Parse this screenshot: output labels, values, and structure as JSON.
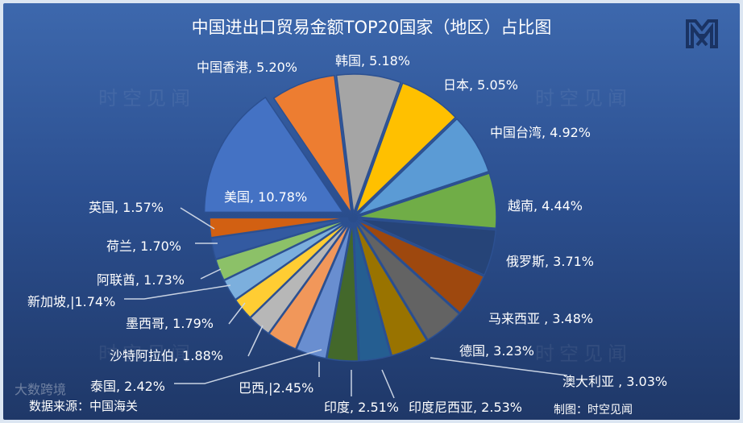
{
  "chart_data": {
    "type": "pie",
    "title": "中国进出口贸易金额TOP20国家（地区）占比图",
    "unit": "%",
    "slices": [
      {
        "label": "美国",
        "value": 10.78,
        "color": "#4472c4"
      },
      {
        "label": "中国香港",
        "value": 5.2,
        "color": "#ed7d31"
      },
      {
        "label": "韩国",
        "value": 5.18,
        "color": "#a5a5a5"
      },
      {
        "label": "日本",
        "value": 5.05,
        "color": "#ffc000"
      },
      {
        "label": "中国台湾",
        "value": 4.92,
        "color": "#5b9bd5"
      },
      {
        "label": "越南",
        "value": 4.44,
        "color": "#70ad47"
      },
      {
        "label": "俄罗斯",
        "value": 3.71,
        "color": "#264478"
      },
      {
        "label": "马来西亚",
        "value": 3.48,
        "color": "#9e480e"
      },
      {
        "label": "德国",
        "value": 3.23,
        "color": "#636363"
      },
      {
        "label": "澳大利亚",
        "value": 3.03,
        "color": "#997300"
      },
      {
        "label": "印度尼西亚",
        "value": 2.53,
        "color": "#255e91"
      },
      {
        "label": "印度",
        "value": 2.51,
        "color": "#43682b"
      },
      {
        "label": "巴西",
        "value": 2.45,
        "color": "#698ed0"
      },
      {
        "label": "泰国",
        "value": 2.42,
        "color": "#f1975a"
      },
      {
        "label": "沙特阿拉伯",
        "value": 1.88,
        "color": "#b7b7b7"
      },
      {
        "label": "墨西哥",
        "value": 1.79,
        "color": "#ffcd33"
      },
      {
        "label": "新加坡",
        "value": 1.74,
        "color": "#7cafdd"
      },
      {
        "label": "阿联酋",
        "value": 1.73,
        "color": "#8cc168"
      },
      {
        "label": "荷兰",
        "value": 1.7,
        "color": "#335aa1"
      },
      {
        "label": "英国",
        "value": 1.57,
        "color": "#d26012"
      }
    ],
    "labels_text": [
      "美国, 10.78%",
      "中国香港, 5.20%",
      "韩国, 5.18%",
      "日本, 5.05%",
      "中国台湾, 4.92%",
      "越南, 4.44%",
      "俄罗斯, 3.71%",
      "马来西亚 , 3.48%",
      "德国, 3.23%",
      "澳大利亚 , 3.03%",
      "印度尼西亚, 2.53%",
      "印度, 2.51%",
      "巴西,|2.45%",
      "泰国, 2.42%",
      "沙特阿拉伯, 1.88%",
      "墨西哥, 1.79%",
      "新加坡,|1.74%",
      "阿联酋, 1.73%",
      "荷兰, 1.70%",
      "英国, 1.57%"
    ],
    "legend": "none"
  },
  "footer": {
    "source": "数据来源：中国海关",
    "credit": "制图：时空见闻",
    "watermark": "大数跨境",
    "background_watermark": "时空见闻"
  },
  "logo": {
    "text": "时空见闻"
  }
}
